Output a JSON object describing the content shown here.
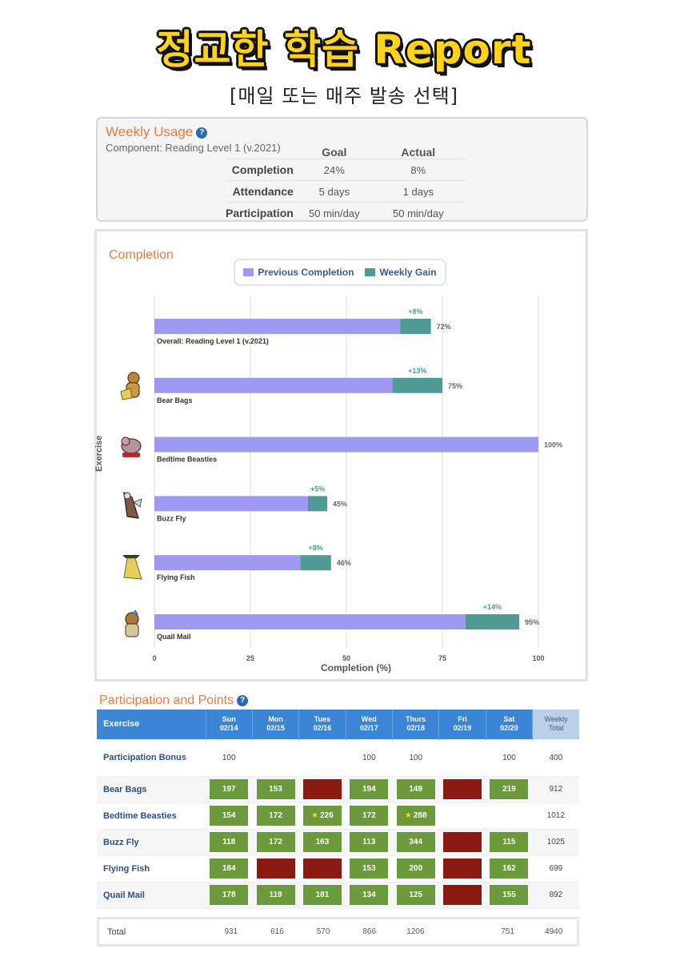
{
  "header": {
    "title": "정교한 학습 Report",
    "subtitle": "[매일 또는 매주 발송 선택]"
  },
  "weekly_usage": {
    "title": "Weekly Usage",
    "component": "Component: Reading Level 1 (v.2021)",
    "columns": [
      "Goal",
      "Actual"
    ],
    "rows": [
      {
        "label": "Completion",
        "goal": "24%",
        "actual": "8%"
      },
      {
        "label": "Attendance",
        "goal": "5 days",
        "actual": "1 days"
      },
      {
        "label": "Participation",
        "goal": "50 min/day",
        "actual": "50 min/day"
      }
    ]
  },
  "completion": {
    "title": "Completion",
    "legend": [
      {
        "label": "Previous Completion",
        "color": "#9e9af2"
      },
      {
        "label": "Weekly Gain",
        "color": "#4f9a94"
      }
    ]
  },
  "chart_data": {
    "type": "bar",
    "orientation": "horizontal",
    "stacked": true,
    "categories": [
      "Overall: Reading Level 1 (v.2021)",
      "Bear Bags",
      "Bedtime Beasties",
      "Buzz Fly",
      "Flying Fish",
      "Quail Mail"
    ],
    "series": [
      {
        "name": "Previous Completion",
        "values": [
          64,
          62,
          100,
          40,
          38,
          81
        ]
      },
      {
        "name": "Weekly Gain",
        "values": [
          8,
          13,
          0,
          5,
          8,
          14
        ]
      }
    ],
    "total_labels": [
      "72%",
      "75%",
      "100%",
      "45%",
      "46%",
      "95%"
    ],
    "gain_labels": [
      "+8%",
      "+13%",
      "",
      "+5%",
      "+8%",
      "+14%"
    ],
    "xlabel": "Completion (%)",
    "ylabel": "Exercise",
    "xlim": [
      0,
      100
    ],
    "xticks": [
      0,
      25,
      50,
      75,
      100
    ],
    "grid": true
  },
  "participation": {
    "title": "Participation and Points",
    "header": {
      "exercise": "Exercise",
      "days": [
        {
          "day": "Sun",
          "date": "02/14"
        },
        {
          "day": "Mon",
          "date": "02/15"
        },
        {
          "day": "Tues",
          "date": "02/16"
        },
        {
          "day": "Wed",
          "date": "02/17"
        },
        {
          "day": "Thurs",
          "date": "02/18"
        },
        {
          "day": "Fri",
          "date": "02/19"
        },
        {
          "day": "Sat",
          "date": "02/20"
        }
      ],
      "total_line1": "Weekly",
      "total_line2": "Total"
    },
    "bonus": {
      "label": "Participation Bonus",
      "values": [
        "100",
        "",
        "",
        "100",
        "100",
        "",
        "100"
      ],
      "total": "400"
    },
    "rows": [
      {
        "name": "Bear Bags",
        "cells": [
          {
            "v": "197",
            "s": "green"
          },
          {
            "v": "153",
            "s": "green"
          },
          {
            "v": "",
            "s": "red"
          },
          {
            "v": "194",
            "s": "green"
          },
          {
            "v": "149",
            "s": "green"
          },
          {
            "v": "",
            "s": "red"
          },
          {
            "v": "219",
            "s": "green"
          }
        ],
        "total": "912"
      },
      {
        "name": "Bedtime Beasties",
        "cells": [
          {
            "v": "154",
            "s": "green"
          },
          {
            "v": "172",
            "s": "green"
          },
          {
            "v": "226",
            "s": "green",
            "star": true
          },
          {
            "v": "172",
            "s": "green"
          },
          {
            "v": "288",
            "s": "green",
            "star": true
          },
          {
            "v": "",
            "s": "none"
          },
          {
            "v": "",
            "s": "none"
          }
        ],
        "total": "1012"
      },
      {
        "name": "Buzz Fly",
        "cells": [
          {
            "v": "118",
            "s": "green"
          },
          {
            "v": "172",
            "s": "green"
          },
          {
            "v": "163",
            "s": "green"
          },
          {
            "v": "113",
            "s": "green"
          },
          {
            "v": "344",
            "s": "green"
          },
          {
            "v": "",
            "s": "red"
          },
          {
            "v": "115",
            "s": "green"
          }
        ],
        "total": "1025"
      },
      {
        "name": "Flying Fish",
        "cells": [
          {
            "v": "184",
            "s": "green"
          },
          {
            "v": "",
            "s": "red"
          },
          {
            "v": "",
            "s": "red"
          },
          {
            "v": "153",
            "s": "green"
          },
          {
            "v": "200",
            "s": "green"
          },
          {
            "v": "",
            "s": "red"
          },
          {
            "v": "162",
            "s": "green"
          }
        ],
        "total": "699"
      },
      {
        "name": "Quail Mail",
        "cells": [
          {
            "v": "178",
            "s": "green"
          },
          {
            "v": "119",
            "s": "green"
          },
          {
            "v": "181",
            "s": "green"
          },
          {
            "v": "134",
            "s": "green"
          },
          {
            "v": "125",
            "s": "green"
          },
          {
            "v": "",
            "s": "red"
          },
          {
            "v": "155",
            "s": "green"
          }
        ],
        "total": "892"
      }
    ],
    "totals": {
      "label": "Total",
      "values": [
        "931",
        "616",
        "570",
        "866",
        "1206",
        "",
        "751"
      ],
      "total": "4940"
    }
  },
  "icons": [
    "help-icon",
    "bear-bags-icon",
    "bedtime-beasties-icon",
    "buzz-fly-icon",
    "flying-fish-icon",
    "quail-mail-icon",
    "star-icon"
  ]
}
